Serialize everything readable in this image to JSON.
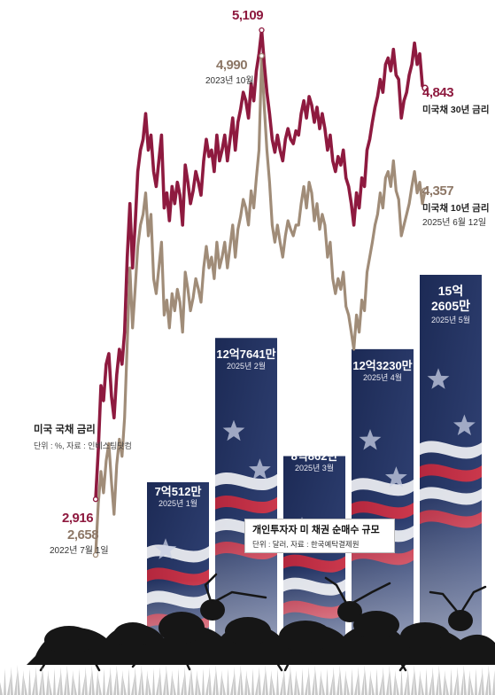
{
  "chart_data": {
    "type": "bar+line",
    "title": "미국 국채 금리",
    "unit_note": "단위 : %, 자료 : 인베스팅닷컴",
    "bar_title": "개인투자자 미 채권 순매수 규모",
    "bar_unit_note": "단위 : 달러, 자료 : 한국예탁결제원",
    "bars": [
      {
        "amount": "7억512만",
        "date": "2025년 1월",
        "value": 705120000
      },
      {
        "amount": "12억7641만",
        "date": "2025년 2월",
        "value": 1276410000
      },
      {
        "amount": "8억862만",
        "date": "2025년 3월",
        "value": 808620000
      },
      {
        "amount": "12억3230만",
        "date": "2025년 4월",
        "value": 1232300000
      },
      {
        "amount": "15억 2605만",
        "amount_line1": "15억",
        "amount_line2": "2605만",
        "date": "2025년 5월",
        "value": 1526050000
      }
    ],
    "series": [
      {
        "name": "미국채 30년 금리",
        "color": "#8e1a3f",
        "start": {
          "value": "2,916",
          "date": "2022년 7월 1일"
        },
        "peak": {
          "value": "5,109"
        },
        "end": {
          "value": "4,843"
        },
        "values": [
          2.92,
          3.15,
          3.45,
          3.38,
          3.55,
          3.6,
          3.4,
          3.3,
          3.5,
          3.62,
          3.55,
          3.7,
          4.05,
          4.3,
          4.0,
          4.2,
          4.45,
          4.55,
          4.6,
          4.72,
          4.55,
          4.62,
          4.45,
          4.38,
          4.5,
          4.62,
          4.28,
          4.35,
          4.22,
          4.38,
          4.3,
          4.4,
          4.34,
          4.2,
          4.48,
          4.4,
          4.3,
          4.36,
          4.45,
          4.4,
          4.34,
          4.5,
          4.6,
          4.52,
          4.55,
          4.45,
          4.62,
          4.5,
          4.55,
          4.62,
          4.5,
          4.6,
          4.7,
          4.55,
          4.68,
          4.74,
          4.82,
          4.78,
          4.7,
          4.86,
          4.78,
          4.92,
          5.0,
          5.11,
          4.95,
          4.82,
          4.72,
          4.6,
          4.54,
          4.62,
          4.55,
          4.5,
          4.6,
          4.65,
          4.6,
          4.58,
          4.64,
          4.62,
          4.72,
          4.78,
          4.7,
          4.8,
          4.76,
          4.68,
          4.75,
          4.65,
          4.72,
          4.65,
          4.55,
          4.62,
          4.5,
          4.45,
          4.52,
          4.48,
          4.55,
          4.42,
          4.38,
          4.3,
          4.2,
          4.35,
          4.28,
          4.42,
          4.38,
          4.55,
          4.6,
          4.68,
          4.75,
          4.8,
          4.88,
          4.82,
          4.95,
          4.98,
          4.92,
          5.02,
          4.9,
          4.88,
          4.7,
          4.78,
          4.82,
          4.9,
          4.95,
          5.05,
          4.95,
          5.0,
          4.85,
          4.84
        ]
      },
      {
        "name": "미국채 10년 금리",
        "color": "#a08c78",
        "start": {
          "value": "2,658",
          "date": "2022년 7월 1일"
        },
        "peak": {
          "value": "4,990",
          "date": "2023년 10월"
        },
        "end": {
          "value": "4,357",
          "date": "2025년 6월 12일"
        },
        "values": [
          2.66,
          2.9,
          3.05,
          2.95,
          3.1,
          3.18,
          3.0,
          2.85,
          3.08,
          3.2,
          3.12,
          3.3,
          3.65,
          4.0,
          3.72,
          3.9,
          4.1,
          4.2,
          4.25,
          4.35,
          4.15,
          4.25,
          3.95,
          3.88,
          4.0,
          4.12,
          3.78,
          3.85,
          3.72,
          3.88,
          3.8,
          3.9,
          3.84,
          3.7,
          3.98,
          3.9,
          3.8,
          3.86,
          3.95,
          3.9,
          3.84,
          4.0,
          4.1,
          4.0,
          4.05,
          3.95,
          4.12,
          4.0,
          4.05,
          4.12,
          4.0,
          4.1,
          4.2,
          4.05,
          4.18,
          4.24,
          4.32,
          4.28,
          4.2,
          4.36,
          4.28,
          4.42,
          4.55,
          4.99,
          4.75,
          4.55,
          4.4,
          4.2,
          4.12,
          4.2,
          4.12,
          4.05,
          4.15,
          4.22,
          4.18,
          4.15,
          4.2,
          4.2,
          4.3,
          4.38,
          4.28,
          4.4,
          4.35,
          4.22,
          4.3,
          4.18,
          4.25,
          4.2,
          4.05,
          4.12,
          3.95,
          3.88,
          3.95,
          3.9,
          3.98,
          3.82,
          3.78,
          3.7,
          3.62,
          3.78,
          3.7,
          3.85,
          3.8,
          3.98,
          4.05,
          4.12,
          4.2,
          4.25,
          4.35,
          4.28,
          4.42,
          4.45,
          4.38,
          4.5,
          4.36,
          4.32,
          4.15,
          4.2,
          4.25,
          4.3,
          4.38,
          4.45,
          4.35,
          4.4,
          4.3,
          4.36
        ]
      }
    ]
  }
}
